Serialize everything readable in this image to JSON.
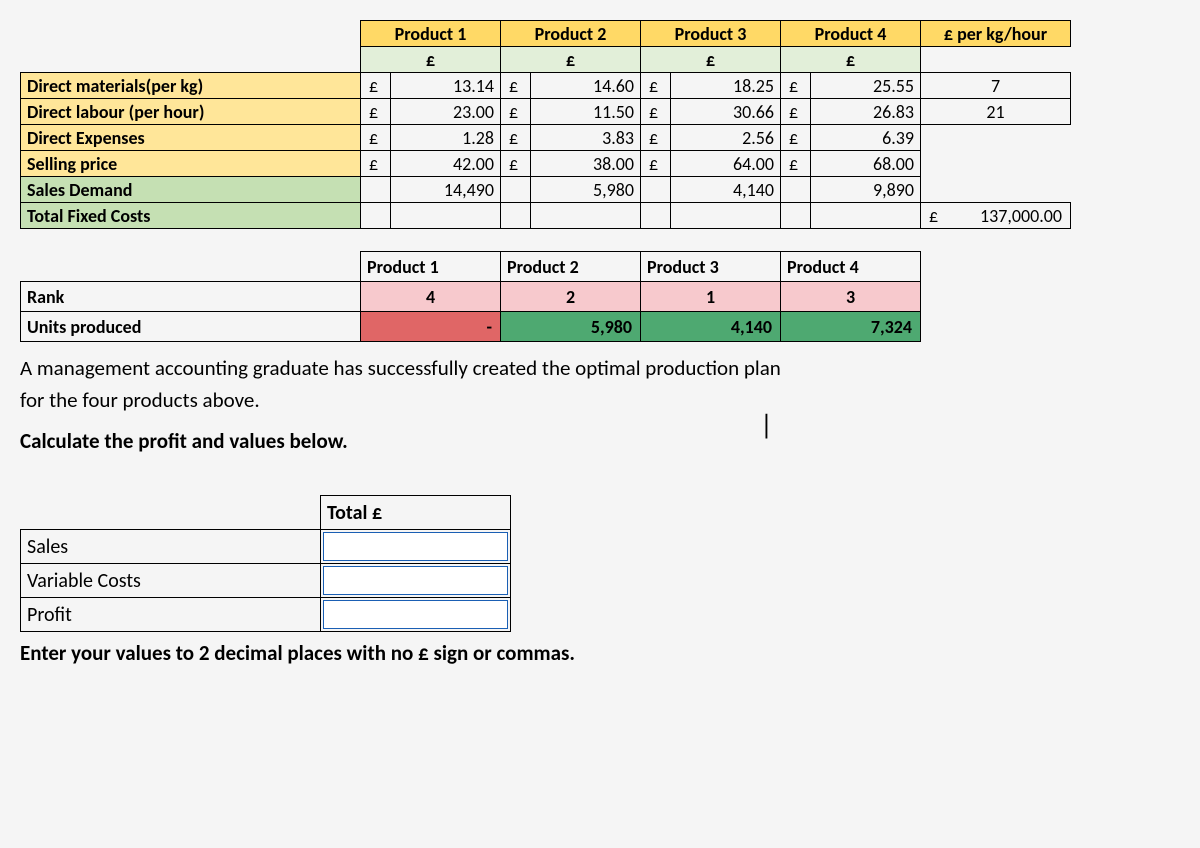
{
  "table1": {
    "headers": [
      "Product 1",
      "Product 2",
      "Product 3",
      "Product 4"
    ],
    "per_label": "£ per kg/hour",
    "currency": "£",
    "rows": [
      {
        "label": "Direct materials(per kg)",
        "style": "row-orange",
        "vals": [
          "13.14",
          "14.60",
          "18.25",
          "25.55"
        ],
        "per": "7"
      },
      {
        "label": "Direct labour (per hour)",
        "style": "row-orange",
        "vals": [
          "23.00",
          "11.50",
          "30.66",
          "26.83"
        ],
        "per": "21"
      },
      {
        "label": "Direct Expenses",
        "style": "row-orange",
        "vals": [
          "1.28",
          "3.83",
          "2.56",
          "6.39"
        ],
        "per": ""
      },
      {
        "label": "Selling price",
        "style": "row-orange",
        "vals": [
          "42.00",
          "38.00",
          "64.00",
          "68.00"
        ],
        "per": ""
      },
      {
        "label": "Sales Demand",
        "style": "row-green",
        "vals": [
          "14,490",
          "5,980",
          "4,140",
          "9,890"
        ],
        "per": "",
        "no_curr": true
      },
      {
        "label": "Total Fixed Costs",
        "style": "row-green",
        "vals": [
          "",
          "",
          "",
          ""
        ],
        "per": "137,000.00",
        "per_curr": "£"
      }
    ]
  },
  "table2": {
    "headers": [
      "Product 1",
      "Product 2",
      "Product 3",
      "Product 4"
    ],
    "rows": [
      {
        "label": "Rank",
        "cells": [
          {
            "v": "4",
            "cls": "pink"
          },
          {
            "v": "2",
            "cls": "pink"
          },
          {
            "v": "1",
            "cls": "pink"
          },
          {
            "v": "3",
            "cls": "pink"
          }
        ]
      },
      {
        "label": "Units produced",
        "cells": [
          {
            "v": "-",
            "cls": "redcell"
          },
          {
            "v": "5,980",
            "cls": "greencell"
          },
          {
            "v": "4,140",
            "cls": "greencell"
          },
          {
            "v": "7,324",
            "cls": "greencell"
          }
        ]
      }
    ]
  },
  "prose": {
    "line1": "A management accounting graduate has successfully created the optimal production plan",
    "line2": "for the four products above.",
    "calc": "Calculate the profit and values below."
  },
  "table3": {
    "header": "Total £",
    "rows": [
      "Sales",
      "Variable Costs",
      "Profit"
    ]
  },
  "footer": "Enter your values to 2 decimal places with no £ sign or commas."
}
